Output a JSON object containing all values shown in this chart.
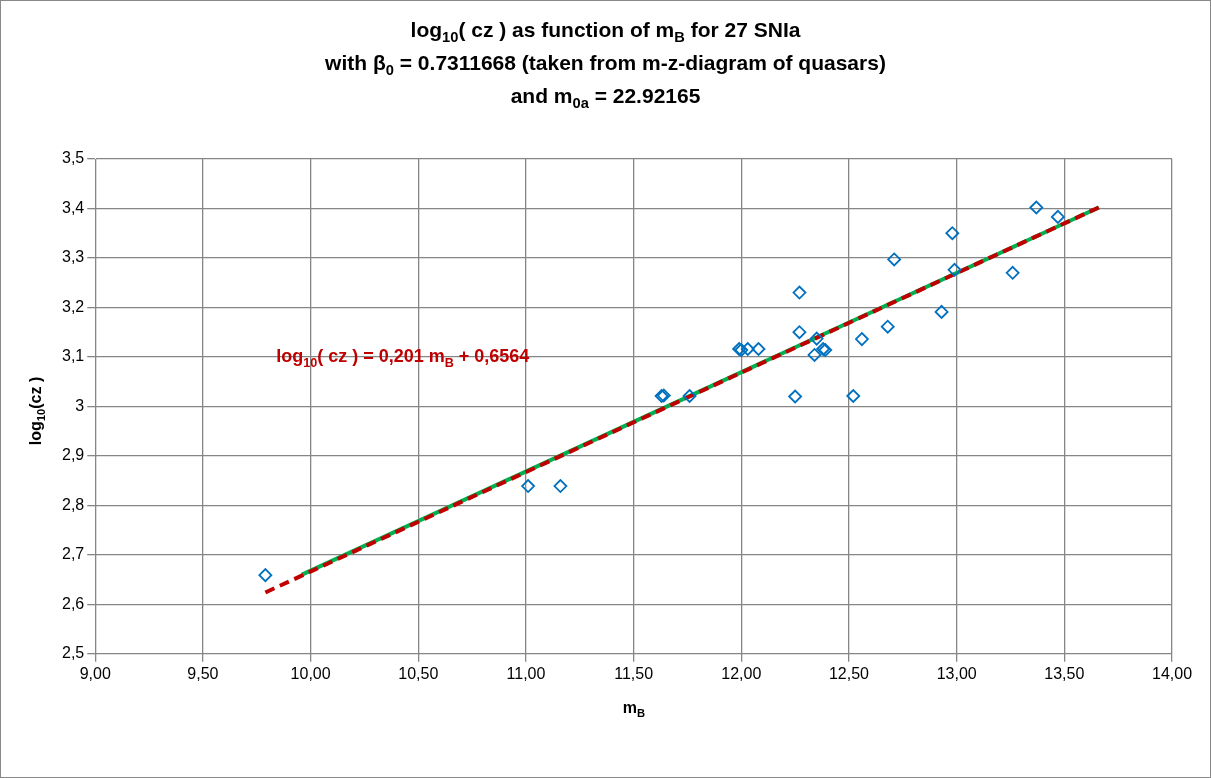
{
  "chart_data": {
    "type": "scatter",
    "title": "log$_{10}$( cz ) as function of m$_{B}$ for 27 SNIa\nwith β$_{0}$ = 0.7311668 (taken from m-z-diagram of quasars)\nand m$_{0a}$ = 22.92165",
    "xlabel": "m$_{B}$",
    "ylabel": "log$_{10}$(cz )",
    "annotations": [
      "log$_{10}$( cz ) = 0,201 m$_{B}$ + 0,6564"
    ],
    "series": [
      {
        "color": "#0070c0",
        "marker": "diamond",
        "x": [
          9.79,
          11.01,
          11.16,
          11.63,
          11.64,
          11.76,
          11.99,
          12.0,
          12.03,
          12.08,
          12.27,
          12.27,
          12.35,
          12.34,
          12.38,
          12.39,
          12.25,
          12.52,
          12.56,
          12.68,
          12.71,
          12.93,
          12.98,
          12.99,
          13.26,
          13.37,
          13.47
        ],
        "values": [
          2.659,
          2.839,
          2.839,
          3.021,
          3.022,
          3.021,
          3.116,
          3.114,
          3.116,
          3.116,
          3.23,
          3.15,
          3.137,
          3.104,
          3.116,
          3.114,
          3.02,
          3.021,
          3.136,
          3.161,
          3.297,
          3.191,
          3.35,
          3.276,
          3.27,
          3.402,
          3.383
        ]
      },
      {
        "type": "line",
        "color": "#00b050",
        "line_style": "solid",
        "marker": "none",
        "x": [
          9.96,
          13.66
        ],
        "values": [
          2.66,
          3.402
        ]
      },
      {
        "type": "line",
        "color": "#c00000",
        "line_style": "dashed",
        "marker": "none",
        "x": [
          9.79,
          13.66
        ],
        "values": [
          2.624,
          3.402
        ]
      }
    ],
    "xlim": [
      9,
      14
    ],
    "xticks": [
      {
        "value": 9,
        "label": "9,00"
      },
      {
        "value": 9.5,
        "label": "9,50"
      },
      {
        "value": 10,
        "label": "10,00"
      },
      {
        "value": 10.5,
        "label": "10,50"
      },
      {
        "value": 11,
        "label": "11,00"
      },
      {
        "value": 11.5,
        "label": "11,50"
      },
      {
        "value": 12,
        "label": "12,00"
      },
      {
        "value": 12.5,
        "label": "12,50"
      },
      {
        "value": 13,
        "label": "13,00"
      },
      {
        "value": 13.5,
        "label": "13,50"
      },
      {
        "value": 14,
        "label": "14,00"
      }
    ],
    "ylim": [
      2.5,
      3.5
    ],
    "yticks": [
      {
        "value": 2.5,
        "label": "2,5"
      },
      {
        "value": 2.6,
        "label": "2,6"
      },
      {
        "value": 2.7,
        "label": "2,7"
      },
      {
        "value": 2.8,
        "label": "2,8"
      },
      {
        "value": 2.9,
        "label": "2,9"
      },
      {
        "value": 3,
        "label": "3"
      },
      {
        "value": 3.1,
        "label": "3,1"
      },
      {
        "value": 3.2,
        "label": "3,2"
      },
      {
        "value": 3.3,
        "label": "3,3"
      },
      {
        "value": 3.4,
        "label": "3,4"
      },
      {
        "value": 3.5,
        "label": "3,5"
      }
    ],
    "grid": true,
    "legend": false
  }
}
